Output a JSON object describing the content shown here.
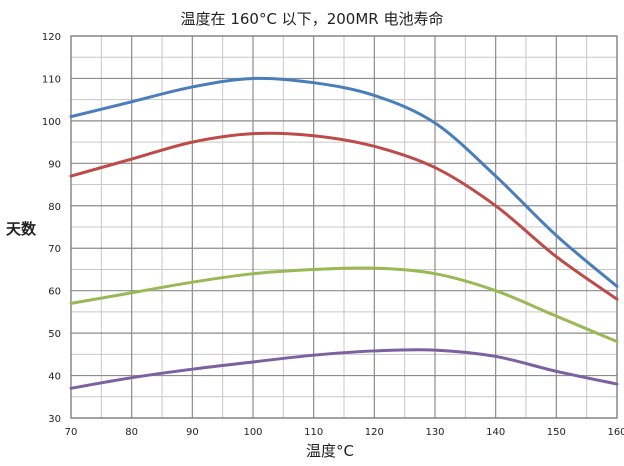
{
  "chart_data": {
    "type": "line",
    "title": "温度在 160°C 以下，200MR 电池寿命",
    "xlabel": "温度°C",
    "ylabel": "天数",
    "xlim": [
      70,
      160
    ],
    "ylim": [
      30,
      120
    ],
    "x_ticks": [
      "70",
      "80",
      "90",
      "100",
      "110",
      "120",
      "130",
      "140",
      "150",
      "160"
    ],
    "y_ticks": [
      "30",
      "40",
      "50",
      "60",
      "70",
      "80",
      "90",
      "100",
      "110",
      "120"
    ],
    "grid": true,
    "x": [
      70,
      80,
      90,
      100,
      110,
      120,
      130,
      140,
      150,
      160
    ],
    "series": [
      {
        "color": "#4a7ebb",
        "values": [
          101,
          104.5,
          108,
          110,
          109,
          106,
          99.5,
          87,
          73,
          61
        ]
      },
      {
        "color": "#be4b48",
        "values": [
          87,
          91,
          95,
          97,
          96.5,
          94,
          89,
          80,
          68,
          58
        ]
      },
      {
        "color": "#98b954",
        "values": [
          57,
          59.5,
          62,
          64,
          65,
          65.3,
          64,
          60,
          54,
          48
        ]
      },
      {
        "color": "#7d60a0",
        "values": [
          37,
          39.5,
          41.5,
          43.2,
          44.8,
          45.8,
          46,
          44.5,
          41,
          38
        ]
      }
    ]
  }
}
